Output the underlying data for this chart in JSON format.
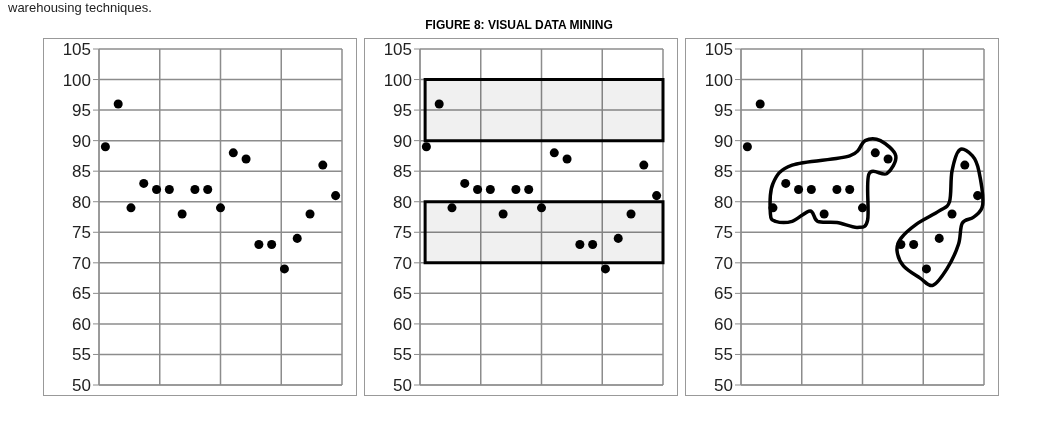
{
  "chart_data": [
    {
      "type": "scatter",
      "annotations": [
        "warehousing techniques."
      ],
      "categories": [
        null,
        null,
        null,
        null,
        null,
        null,
        null,
        null,
        null,
        null,
        null,
        null,
        null,
        null,
        null,
        null,
        null,
        null,
        null
      ],
      "series": [
        {
          "color": "#000000",
          "values": [
            89,
            96,
            79,
            83,
            82,
            82,
            78,
            82,
            82,
            79,
            88,
            87,
            73,
            73,
            69,
            74,
            78,
            86,
            81
          ]
        }
      ],
      "ylim": [
        50,
        105
      ],
      "yticks": [
        50,
        55,
        60,
        65,
        70,
        75,
        80,
        85,
        90,
        95,
        100,
        105
      ],
      "grid": true,
      "tick_labels": "y",
      "marker": "circle"
    },
    {
      "type": "scatter",
      "title": "FIGURE 8: VISUAL DATA MINING",
      "categories": [
        null,
        null,
        null,
        null,
        null,
        null,
        null,
        null,
        null,
        null,
        null,
        null,
        null,
        null,
        null,
        null,
        null,
        null,
        null
      ],
      "series": [
        {
          "color": "#000000",
          "values": [
            89,
            96,
            79,
            83,
            82,
            82,
            78,
            82,
            82,
            79,
            88,
            87,
            73,
            73,
            69,
            74,
            78,
            86,
            81
          ]
        }
      ],
      "bands": [
        {
          "axis": "y",
          "from": 90,
          "to": 100,
          "color": "#000000"
        },
        {
          "axis": "y",
          "from": 70,
          "to": 80,
          "color": "#000000"
        }
      ],
      "ylim": [
        50,
        105
      ],
      "yticks": [
        50,
        55,
        60,
        65,
        70,
        75,
        80,
        85,
        90,
        95,
        100,
        105
      ],
      "grid": true,
      "tick_labels": "y",
      "marker": "circle"
    },
    {
      "type": "scatter",
      "categories": [
        null,
        null,
        null,
        null,
        null,
        null,
        null,
        null,
        null,
        null,
        null,
        null,
        null,
        null,
        null,
        null,
        null,
        null,
        null
      ],
      "series": [
        {
          "color": "#000000",
          "values": [
            89,
            96,
            79,
            83,
            82,
            82,
            78,
            82,
            82,
            79,
            88,
            87,
            73,
            73,
            69,
            74,
            78,
            86,
            81
          ]
        }
      ],
      "ylim": [
        50,
        105
      ],
      "yticks": [
        50,
        55,
        60,
        65,
        70,
        75,
        80,
        85,
        90,
        95,
        100,
        105
      ],
      "grid": true,
      "tick_labels": "y",
      "marker": "circle"
    }
  ]
}
